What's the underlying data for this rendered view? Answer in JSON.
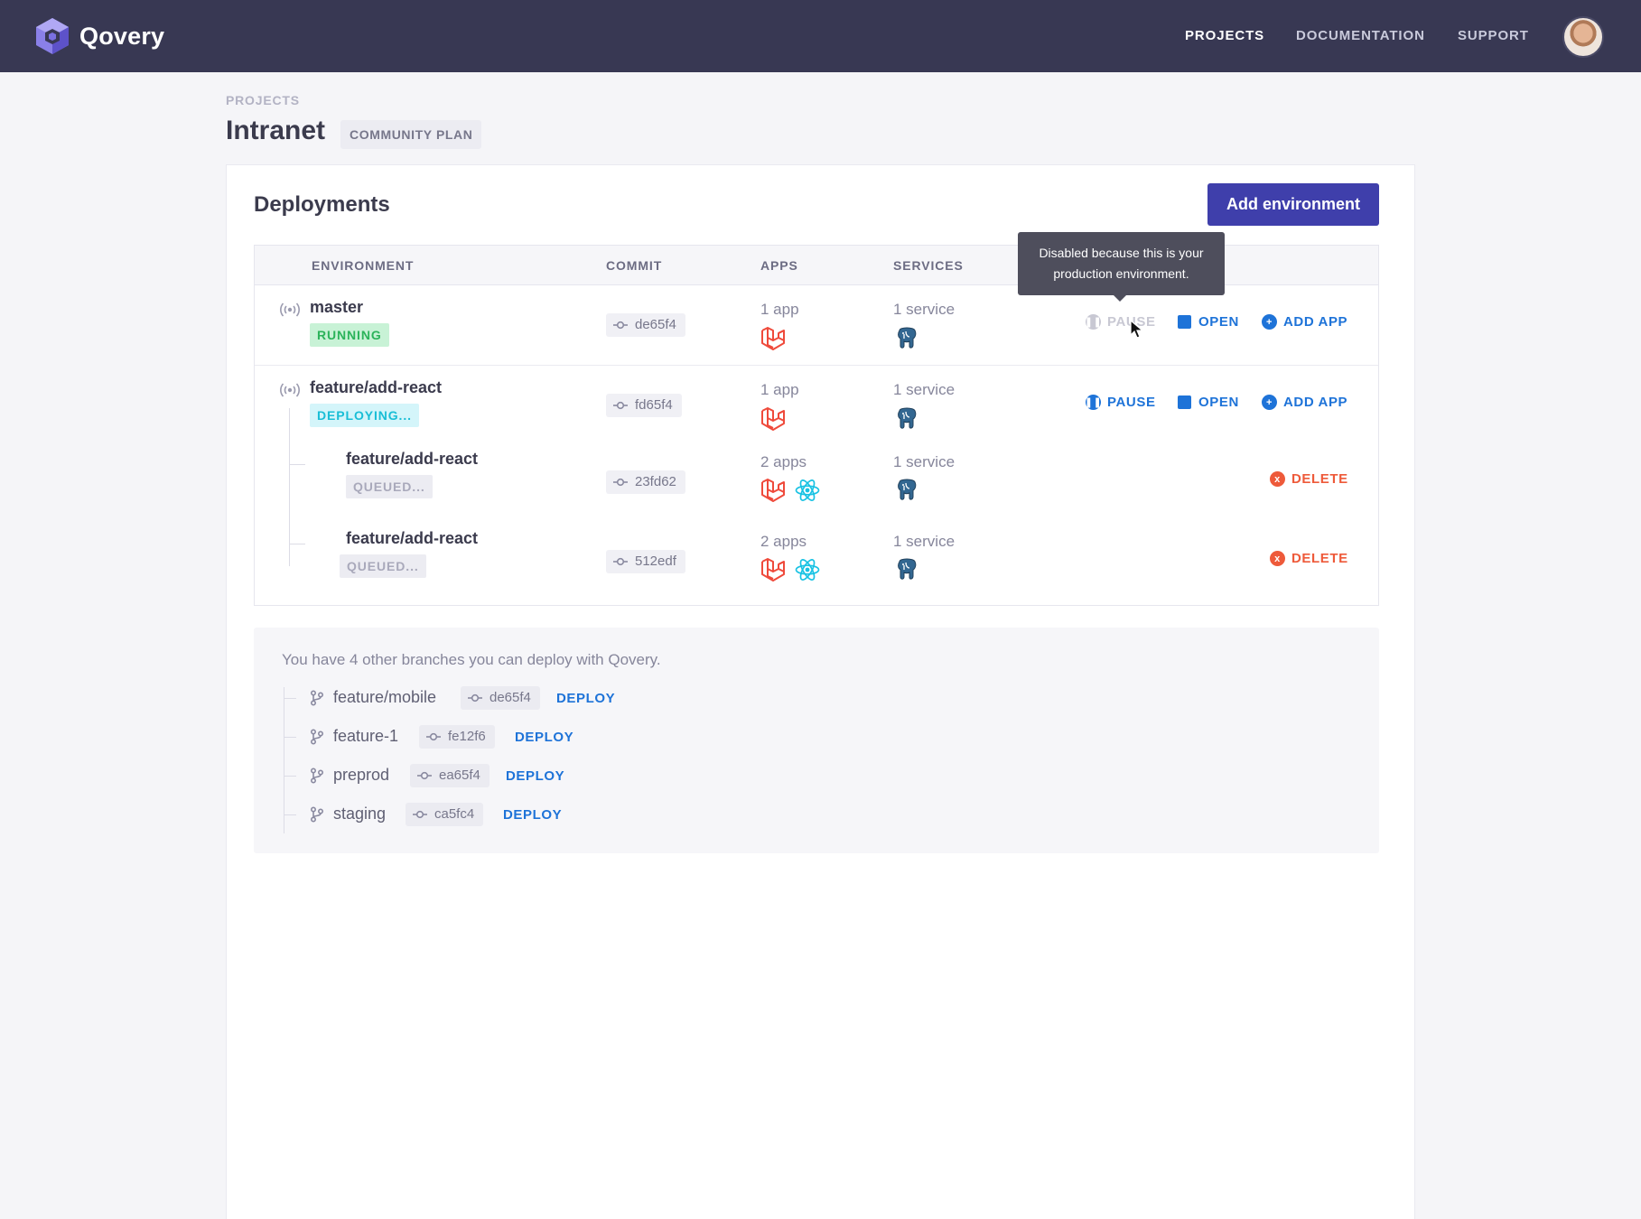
{
  "app": {
    "name": "Qovery"
  },
  "nav": {
    "items": [
      {
        "label": "PROJECTS",
        "active": true
      },
      {
        "label": "DOCUMENTATION",
        "active": false
      },
      {
        "label": "SUPPORT",
        "active": false
      }
    ]
  },
  "header": {
    "breadcrumb": "PROJECTS",
    "title": "Intranet",
    "plan": "COMMUNITY PLAN"
  },
  "deployments": {
    "title": "Deployments",
    "add_button": "Add environment",
    "columns": [
      "ENVIRONMENT",
      "COMMIT",
      "APPS",
      "SERVICES"
    ],
    "rows": [
      {
        "name": "master",
        "status": "RUNNING",
        "commit": "de65f4",
        "apps_count": "1 app",
        "apps": [
          "laravel"
        ],
        "services_count": "1 service",
        "services": [
          "postgresql"
        ],
        "actions": [
          "PAUSE",
          "OPEN",
          "ADD APP"
        ],
        "pause_disabled": true
      },
      {
        "name": "feature/add-react",
        "status": "DEPLOYING...",
        "commit": "fd65f4",
        "apps_count": "1 app",
        "apps": [
          "laravel"
        ],
        "services_count": "1 service",
        "services": [
          "postgresql"
        ],
        "actions": [
          "PAUSE",
          "OPEN",
          "ADD APP"
        ],
        "pause_disabled": false
      },
      {
        "name": "feature/add-react",
        "status": "QUEUED...",
        "commit": "23fd62",
        "apps_count": "2 apps",
        "apps": [
          "laravel",
          "react"
        ],
        "services_count": "1 service",
        "services": [
          "postgresql"
        ],
        "actions": [
          "DELETE"
        ]
      },
      {
        "name": "feature/add-react",
        "status": "QUEUED...",
        "commit": "512edf",
        "apps_count": "2 apps",
        "apps": [
          "laravel",
          "react"
        ],
        "services_count": "1 service",
        "services": [
          "postgresql"
        ],
        "actions": [
          "DELETE"
        ]
      }
    ],
    "tooltip": [
      "Disabled because this is your",
      "production environment."
    ]
  },
  "branches": {
    "intro": "You have 4 other branches you can deploy with Qovery.",
    "deploy_label": "DEPLOY",
    "items": [
      {
        "name": "feature/mobile",
        "commit": "de65f4"
      },
      {
        "name": "feature-1",
        "commit": "fe12f6"
      },
      {
        "name": "preprod",
        "commit": "ea65f4"
      },
      {
        "name": "staging",
        "commit": "ca5fc4"
      }
    ]
  },
  "icons": {
    "brand": "qovery-logo-icon",
    "environment": "broadcast-signal-icon",
    "commit": "git-commit-icon",
    "branch": "git-branch-icon",
    "app_types": [
      "laravel-icon",
      "react-icon"
    ],
    "service_type": "postgresql-icon"
  },
  "colors": {
    "nav_bg": "#383853",
    "primary_button": "#3f3fab",
    "action_blue": "#1e73d8",
    "delete_red": "#ee5a3a",
    "running_green": "#2bb35a",
    "deploying_cyan": "#19bed6"
  }
}
